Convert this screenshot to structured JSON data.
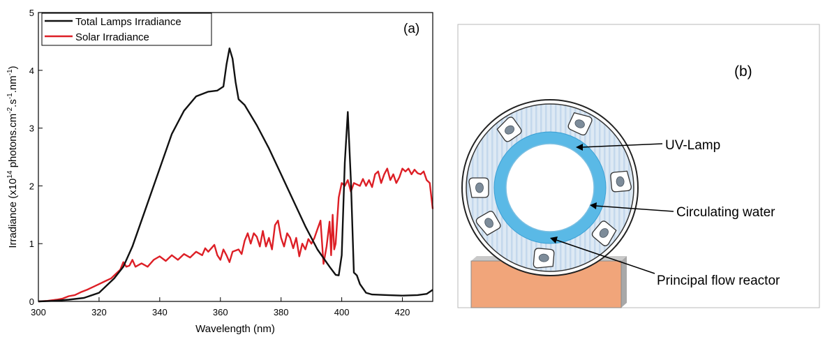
{
  "chart_data": {
    "type": "line",
    "panel_label": "(a)",
    "xlabel": "Wavelength (nm)",
    "ylabel_prefix": "Irradiance (x10",
    "ylabel_exp1": "14",
    "ylabel_mid": " photons.cm",
    "ylabel_exp2": "-2",
    "ylabel_mid2": ".s",
    "ylabel_exp3": "-1",
    "ylabel_mid3": ".nm",
    "ylabel_exp4": "-1",
    "ylabel_suffix": ")",
    "xlim": [
      300,
      430
    ],
    "ylim": [
      0,
      5
    ],
    "x_ticks": [
      "300",
      "320",
      "340",
      "360",
      "380",
      "400",
      "420"
    ],
    "y_ticks": [
      "0",
      "1",
      "2",
      "3",
      "4",
      "5"
    ],
    "legend_position": "top-left",
    "series": [
      {
        "name": "Total Lamps Irradiance",
        "color": "#111111",
        "points": [
          [
            300,
            0
          ],
          [
            305,
            0.01
          ],
          [
            310,
            0.03
          ],
          [
            315,
            0.06
          ],
          [
            320,
            0.15
          ],
          [
            325,
            0.4
          ],
          [
            328,
            0.6
          ],
          [
            331,
            0.95
          ],
          [
            335,
            1.55
          ],
          [
            340,
            2.3
          ],
          [
            344,
            2.9
          ],
          [
            348,
            3.3
          ],
          [
            352,
            3.55
          ],
          [
            356,
            3.63
          ],
          [
            359,
            3.65
          ],
          [
            361,
            3.72
          ],
          [
            362,
            4.1
          ],
          [
            363,
            4.38
          ],
          [
            364,
            4.2
          ],
          [
            365,
            3.8
          ],
          [
            366,
            3.5
          ],
          [
            368,
            3.4
          ],
          [
            372,
            3.05
          ],
          [
            376,
            2.65
          ],
          [
            380,
            2.2
          ],
          [
            384,
            1.75
          ],
          [
            388,
            1.3
          ],
          [
            392,
            0.9
          ],
          [
            396,
            0.6
          ],
          [
            398,
            0.46
          ],
          [
            399,
            0.45
          ],
          [
            400,
            0.8
          ],
          [
            401,
            2.4
          ],
          [
            402,
            3.28
          ],
          [
            403,
            2.1
          ],
          [
            404,
            0.5
          ],
          [
            405,
            0.45
          ],
          [
            406,
            0.3
          ],
          [
            408,
            0.15
          ],
          [
            410,
            0.12
          ],
          [
            415,
            0.11
          ],
          [
            420,
            0.1
          ],
          [
            425,
            0.11
          ],
          [
            428,
            0.13
          ],
          [
            430,
            0.2
          ]
        ]
      },
      {
        "name": "Solar Irradiance",
        "color": "#dd1f26",
        "points": [
          [
            300,
            0
          ],
          [
            303,
            0.01
          ],
          [
            306,
            0.03
          ],
          [
            308,
            0.05
          ],
          [
            310,
            0.09
          ],
          [
            312,
            0.11
          ],
          [
            314,
            0.16
          ],
          [
            316,
            0.2
          ],
          [
            318,
            0.25
          ],
          [
            320,
            0.3
          ],
          [
            322,
            0.35
          ],
          [
            324,
            0.4
          ],
          [
            326,
            0.5
          ],
          [
            327,
            0.55
          ],
          [
            328,
            0.68
          ],
          [
            329,
            0.6
          ],
          [
            330,
            0.62
          ],
          [
            331,
            0.72
          ],
          [
            332,
            0.6
          ],
          [
            334,
            0.66
          ],
          [
            336,
            0.6
          ],
          [
            338,
            0.72
          ],
          [
            340,
            0.78
          ],
          [
            342,
            0.7
          ],
          [
            344,
            0.8
          ],
          [
            346,
            0.72
          ],
          [
            348,
            0.82
          ],
          [
            350,
            0.76
          ],
          [
            352,
            0.86
          ],
          [
            354,
            0.8
          ],
          [
            355,
            0.92
          ],
          [
            356,
            0.86
          ],
          [
            358,
            0.98
          ],
          [
            359,
            0.8
          ],
          [
            360,
            0.72
          ],
          [
            361,
            0.9
          ],
          [
            362,
            0.8
          ],
          [
            363,
            0.68
          ],
          [
            364,
            0.86
          ],
          [
            366,
            0.9
          ],
          [
            367,
            0.82
          ],
          [
            368,
            1.05
          ],
          [
            369,
            1.18
          ],
          [
            370,
            1.0
          ],
          [
            371,
            1.18
          ],
          [
            372,
            1.12
          ],
          [
            373,
            0.95
          ],
          [
            374,
            1.22
          ],
          [
            375,
            0.95
          ],
          [
            376,
            1.1
          ],
          [
            377,
            0.9
          ],
          [
            378,
            1.32
          ],
          [
            379,
            1.4
          ],
          [
            380,
            1.1
          ],
          [
            381,
            0.95
          ],
          [
            382,
            1.18
          ],
          [
            383,
            1.1
          ],
          [
            384,
            0.92
          ],
          [
            385,
            1.1
          ],
          [
            386,
            0.78
          ],
          [
            387,
            1.0
          ],
          [
            388,
            0.9
          ],
          [
            389,
            1.08
          ],
          [
            390,
            1.0
          ],
          [
            391,
            1.1
          ],
          [
            392,
            1.25
          ],
          [
            393,
            1.4
          ],
          [
            394,
            0.65
          ],
          [
            395,
            0.95
          ],
          [
            396,
            1.38
          ],
          [
            396.5,
            0.8
          ],
          [
            397,
            1.5
          ],
          [
            397.5,
            0.9
          ],
          [
            398,
            1.0
          ],
          [
            399,
            1.8
          ],
          [
            400,
            2.05
          ],
          [
            401,
            2.0
          ],
          [
            402,
            2.1
          ],
          [
            403,
            1.9
          ],
          [
            404,
            2.05
          ],
          [
            406,
            2.0
          ],
          [
            407,
            2.12
          ],
          [
            408,
            2.0
          ],
          [
            409,
            2.1
          ],
          [
            410,
            1.98
          ],
          [
            411,
            2.2
          ],
          [
            412,
            2.25
          ],
          [
            413,
            2.05
          ],
          [
            414,
            2.2
          ],
          [
            415,
            2.3
          ],
          [
            416,
            2.1
          ],
          [
            417,
            2.2
          ],
          [
            418,
            2.05
          ],
          [
            419,
            2.15
          ],
          [
            420,
            2.3
          ],
          [
            421,
            2.25
          ],
          [
            422,
            2.3
          ],
          [
            423,
            2.2
          ],
          [
            424,
            2.28
          ],
          [
            425,
            2.22
          ],
          [
            426,
            2.2
          ],
          [
            427,
            2.25
          ],
          [
            428,
            2.1
          ],
          [
            429,
            2.05
          ],
          [
            430,
            1.6
          ]
        ]
      }
    ]
  },
  "diagram": {
    "panel_label": "(b)",
    "labels": {
      "uv_lamp": "UV-Lamp",
      "circulating_water": "Circulating water",
      "principal_flow_reactor": "Principal flow reactor"
    },
    "colors": {
      "outer_fill": "#dce8f3",
      "water_ring": "#5ab9e6",
      "base_fill": "#f1a57a",
      "lamp_core": "#7d8c9a"
    }
  }
}
